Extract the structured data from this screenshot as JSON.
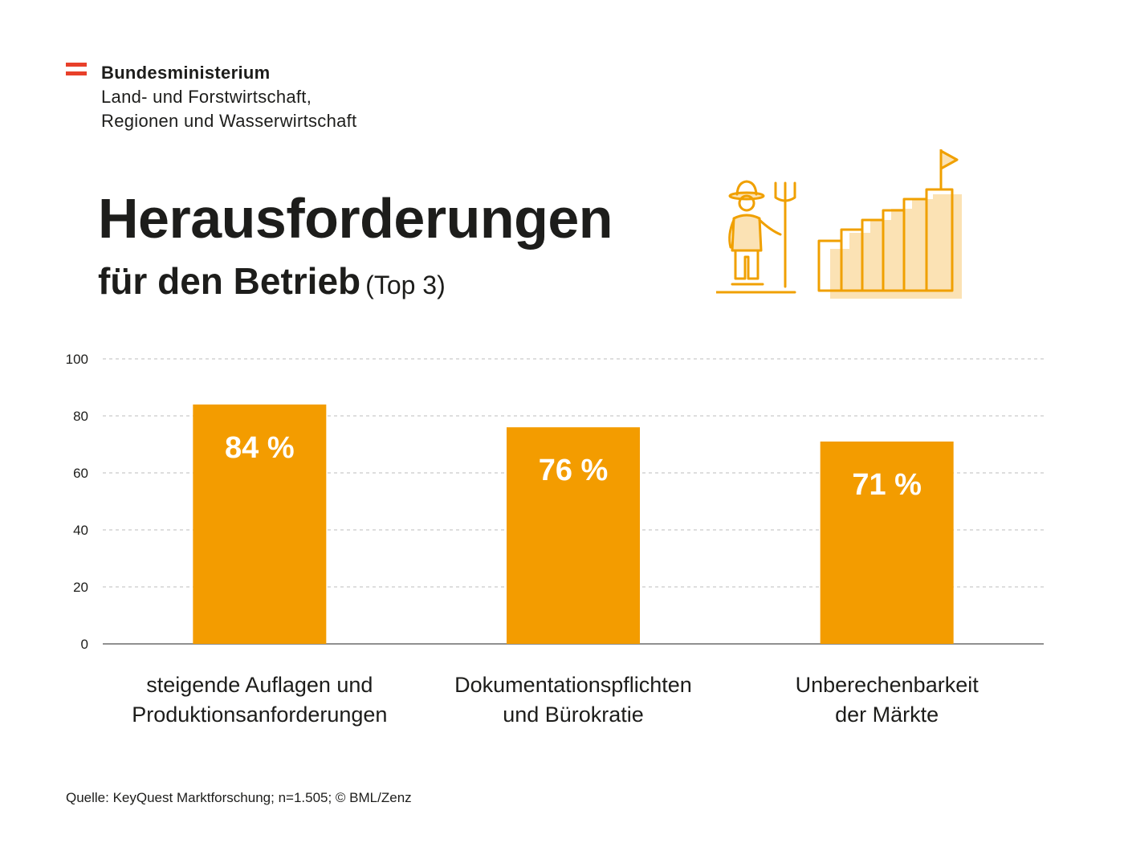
{
  "branding": {
    "ministry_line1": "Bundesministerium",
    "ministry_line2": "Land- und Forstwirtschaft,",
    "ministry_line3": "Regionen und Wasserwirtschaft",
    "flag_color": "#e8402a"
  },
  "header": {
    "title": "Herausforderungen",
    "subtitle": "für den Betrieb",
    "subtitle_suffix": "(Top 3)"
  },
  "illustration": {
    "icon_farmer": "farmer-with-pitchfork-icon",
    "icon_stairs": "rising-stairs-flag-icon",
    "color": "#f0a000"
  },
  "chart_data": {
    "type": "bar",
    "title": "Herausforderungen für den Betrieb (Top 3)",
    "categories": [
      [
        "steigende Auflagen und",
        "Produktionsanforderungen"
      ],
      [
        "Dokumentationspflichten",
        "und Bürokratie"
      ],
      [
        "Unberechenbarkeit",
        "der Märkte"
      ]
    ],
    "values": [
      84,
      76,
      71
    ],
    "data_labels": [
      "84 %",
      "76 %",
      "71 %"
    ],
    "yticks": [
      0,
      20,
      40,
      60,
      80,
      100
    ],
    "ylim": [
      0,
      100
    ],
    "xlabel": "",
    "ylabel": "",
    "grid": true,
    "bar_color": "#f39c00",
    "label_color": "#ffffff"
  },
  "footer": {
    "source": "Quelle: KeyQuest Marktforschung; n=1.505;  © BML/Zenz"
  }
}
